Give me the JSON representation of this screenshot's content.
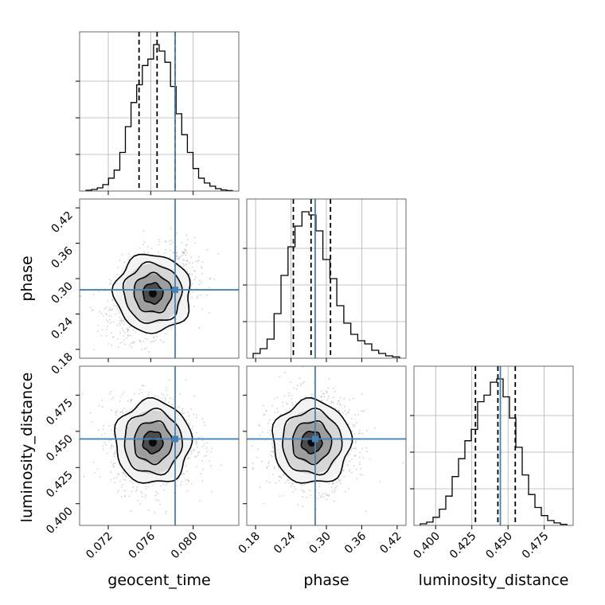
{
  "chart_data": {
    "type": "corner",
    "parameters": [
      "geocent_time",
      "phase",
      "luminosity_distance"
    ],
    "axis_labels": {
      "geocent_time": "geocent_time",
      "phase": "phase",
      "luminosity_distance": "luminosity_distance"
    },
    "ranges": {
      "geocent_time": [
        0.0693,
        0.0843
      ],
      "phase": [
        0.165,
        0.435
      ],
      "luminosity_distance": [
        0.385,
        0.495
      ]
    },
    "ticks": {
      "geocent_time": [
        0.072,
        0.076,
        0.08
      ],
      "phase": [
        0.18,
        0.24,
        0.3,
        0.36,
        0.42
      ],
      "luminosity_distance": [
        0.4,
        0.425,
        0.45,
        0.475
      ]
    },
    "tick_labels": {
      "geocent_time": [
        "0.072",
        "0.076",
        "0.080"
      ],
      "phase": [
        "0.18",
        "0.24",
        "0.30",
        "0.36",
        "0.42"
      ],
      "luminosity_distance": [
        "0.400",
        "0.425",
        "0.450",
        "0.475"
      ]
    },
    "truths": {
      "geocent_time": 0.0783,
      "phase": 0.281,
      "luminosity_distance": 0.4447
    },
    "quantiles": {
      "geocent_time": [
        0.0749,
        0.0766,
        0.0783
      ],
      "phase": [
        0.244,
        0.274,
        0.307
      ],
      "luminosity_distance": [
        0.4275,
        0.443,
        0.455
      ]
    },
    "means": {
      "geocent_time": 0.0762,
      "phase": 0.275,
      "luminosity_distance": 0.4425
    },
    "histograms": {
      "geocent_time": [
        0.005,
        0.01,
        0.02,
        0.04,
        0.08,
        0.13,
        0.24,
        0.4,
        0.55,
        0.66,
        0.78,
        0.82,
        0.91,
        0.87,
        0.8,
        0.65,
        0.48,
        0.35,
        0.24,
        0.14,
        0.08,
        0.05,
        0.03,
        0.015,
        0.007,
        0.003
      ],
      "phase": [
        0.03,
        0.06,
        0.12,
        0.28,
        0.52,
        0.7,
        0.83,
        0.92,
        0.9,
        0.8,
        0.62,
        0.5,
        0.33,
        0.22,
        0.15,
        0.11,
        0.09,
        0.05,
        0.03,
        0.015,
        0.008
      ],
      "luminosity_distance": [
        0.01,
        0.02,
        0.05,
        0.1,
        0.18,
        0.3,
        0.41,
        0.52,
        0.59,
        0.76,
        0.8,
        0.88,
        0.9,
        0.79,
        0.66,
        0.48,
        0.31,
        0.19,
        0.11,
        0.06,
        0.03,
        0.015,
        0.007
      ]
    },
    "grid": true,
    "legend": "none"
  }
}
